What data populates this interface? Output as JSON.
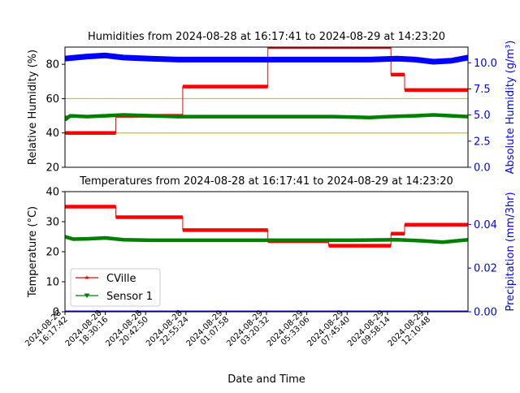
{
  "figure": {
    "xlabel": "Date and Time"
  },
  "chart_data": [
    {
      "type": "line",
      "title": "Humidities from 2024-08-28 at 16:17:41 to 2024-08-29 at 14:23:20",
      "ylabel": "Relative Humidity (%)",
      "ylim": [
        20,
        90
      ],
      "yticks": [
        "20",
        "40",
        "60",
        "80"
      ],
      "y2label": "Absolute Humidity (g/m³)",
      "y2lim": [
        0,
        11.5
      ],
      "y2ticks": [
        "0.0",
        "2.5",
        "5.0",
        "7.5",
        "10.0"
      ],
      "reference_lines": [
        40,
        60
      ],
      "series": [
        {
          "name": "CVille",
          "color": "#ff0000",
          "axis": "left",
          "step": true,
          "points": [
            [
              "2024-08-28 16:17:42",
              40
            ],
            [
              "2024-08-28 19:05:00",
              40
            ],
            [
              "2024-08-28 19:05:00",
              50
            ],
            [
              "2024-08-28 22:45:00",
              50
            ],
            [
              "2024-08-28 22:45:00",
              67
            ],
            [
              "2024-08-29 03:25:00",
              67
            ],
            [
              "2024-08-29 03:25:00",
              90
            ],
            [
              "2024-08-29 10:10:00",
              90
            ],
            [
              "2024-08-29 10:10:00",
              74
            ],
            [
              "2024-08-29 10:55:00",
              74
            ],
            [
              "2024-08-29 10:55:00",
              65
            ],
            [
              "2024-08-29 14:23:20",
              65
            ]
          ]
        },
        {
          "name": "Sensor 1",
          "color": "#008000",
          "axis": "left",
          "points": [
            [
              "2024-08-28 16:17:42",
              50
            ],
            [
              "2024-08-28 16:20:00",
              48
            ],
            [
              "2024-08-28 16:35:00",
              50
            ],
            [
              "2024-08-28 17:30:00",
              49.5
            ],
            [
              "2024-08-28 18:30:00",
              50
            ],
            [
              "2024-08-28 19:30:00",
              50.5
            ],
            [
              "2024-08-28 21:00:00",
              50
            ],
            [
              "2024-08-28 22:30:00",
              49.5
            ],
            [
              "2024-08-29 01:00:00",
              49.5
            ],
            [
              "2024-08-29 04:00:00",
              49.5
            ],
            [
              "2024-08-29 07:00:00",
              49.5
            ],
            [
              "2024-08-29 09:00:00",
              49
            ],
            [
              "2024-08-29 10:00:00",
              49.5
            ],
            [
              "2024-08-29 11:30:00",
              50
            ],
            [
              "2024-08-29 12:30:00",
              50.5
            ],
            [
              "2024-08-29 13:30:00",
              50
            ],
            [
              "2024-08-29 14:23:20",
              49.5
            ]
          ]
        },
        {
          "name": "Absolute Humidity",
          "color": "#0000ff",
          "axis": "right",
          "points": [
            [
              "2024-08-28 16:17:42",
              10.4
            ],
            [
              "2024-08-28 17:30:00",
              10.6
            ],
            [
              "2024-08-28 18:30:00",
              10.7
            ],
            [
              "2024-08-28 19:30:00",
              10.5
            ],
            [
              "2024-08-28 21:00:00",
              10.4
            ],
            [
              "2024-08-28 22:30:00",
              10.3
            ],
            [
              "2024-08-29 01:00:00",
              10.3
            ],
            [
              "2024-08-29 04:00:00",
              10.3
            ],
            [
              "2024-08-29 07:00:00",
              10.3
            ],
            [
              "2024-08-29 09:00:00",
              10.3
            ],
            [
              "2024-08-29 10:30:00",
              10.4
            ],
            [
              "2024-08-29 11:30:00",
              10.3
            ],
            [
              "2024-08-29 12:30:00",
              10.1
            ],
            [
              "2024-08-29 13:30:00",
              10.2
            ],
            [
              "2024-08-29 14:23:20",
              10.5
            ]
          ]
        }
      ]
    },
    {
      "type": "line",
      "title": "Temperatures from 2024-08-28 at 16:17:41 to 2024-08-29 at 14:23:20",
      "ylabel": "Temperature (°C)",
      "ylim": [
        0,
        40
      ],
      "yticks": [
        "0",
        "10",
        "20",
        "30",
        "40"
      ],
      "y2label": "Precipitation (mm/3hr)",
      "y2lim": [
        0,
        0.055
      ],
      "y2ticks": [
        "0.00",
        "0.02",
        "0.04"
      ],
      "xlabel": "Date and Time",
      "xticks": [
        "2024-08-28\n16:17:42",
        "2024-08-28\n18:30:16",
        "2024-08-28\n20:42:50",
        "2024-08-28\n22:55:24",
        "2024-08-29\n01:07:58",
        "2024-08-29\n03:20:32",
        "2024-08-29\n05:33:06",
        "2024-08-29\n07:45:40",
        "2024-08-29\n09:58:14",
        "2024-08-29\n12:10:48"
      ],
      "legend": {
        "position": "lower-left",
        "entries": [
          "CVille",
          "Sensor 1"
        ]
      },
      "series": [
        {
          "name": "CVille",
          "color": "#ff0000",
          "axis": "left",
          "step": true,
          "points": [
            [
              "2024-08-28 16:17:42",
              35
            ],
            [
              "2024-08-28 19:05:00",
              35
            ],
            [
              "2024-08-28 19:05:00",
              31.5
            ],
            [
              "2024-08-28 22:45:00",
              31.5
            ],
            [
              "2024-08-28 22:45:00",
              27.2
            ],
            [
              "2024-08-29 03:25:00",
              27.2
            ],
            [
              "2024-08-29 03:25:00",
              23.5
            ],
            [
              "2024-08-29 06:45:00",
              23.5
            ],
            [
              "2024-08-29 06:45:00",
              22
            ],
            [
              "2024-08-29 10:10:00",
              22
            ],
            [
              "2024-08-29 10:10:00",
              26
            ],
            [
              "2024-08-29 10:55:00",
              26
            ],
            [
              "2024-08-29 10:55:00",
              29
            ],
            [
              "2024-08-29 14:23:20",
              29
            ]
          ]
        },
        {
          "name": "Sensor 1",
          "color": "#008000",
          "axis": "left",
          "points": [
            [
              "2024-08-28 16:17:42",
              25
            ],
            [
              "2024-08-28 16:45:00",
              24.2
            ],
            [
              "2024-08-28 17:30:00",
              24.3
            ],
            [
              "2024-08-28 18:30:00",
              24.6
            ],
            [
              "2024-08-28 19:30:00",
              24
            ],
            [
              "2024-08-28 21:00:00",
              23.8
            ],
            [
              "2024-08-28 23:00:00",
              23.8
            ],
            [
              "2024-08-29 04:00:00",
              23.8
            ],
            [
              "2024-08-29 08:00:00",
              23.8
            ],
            [
              "2024-08-29 10:30:00",
              24
            ],
            [
              "2024-08-29 12:00:00",
              23.6
            ],
            [
              "2024-08-29 13:00:00",
              23.2
            ],
            [
              "2024-08-29 14:23:20",
              24
            ]
          ]
        },
        {
          "name": "Precipitation",
          "color": "#0000ff",
          "axis": "right",
          "points": [
            [
              "2024-08-28 16:17:42",
              0
            ],
            [
              "2024-08-29 14:23:20",
              0
            ]
          ]
        }
      ]
    }
  ]
}
